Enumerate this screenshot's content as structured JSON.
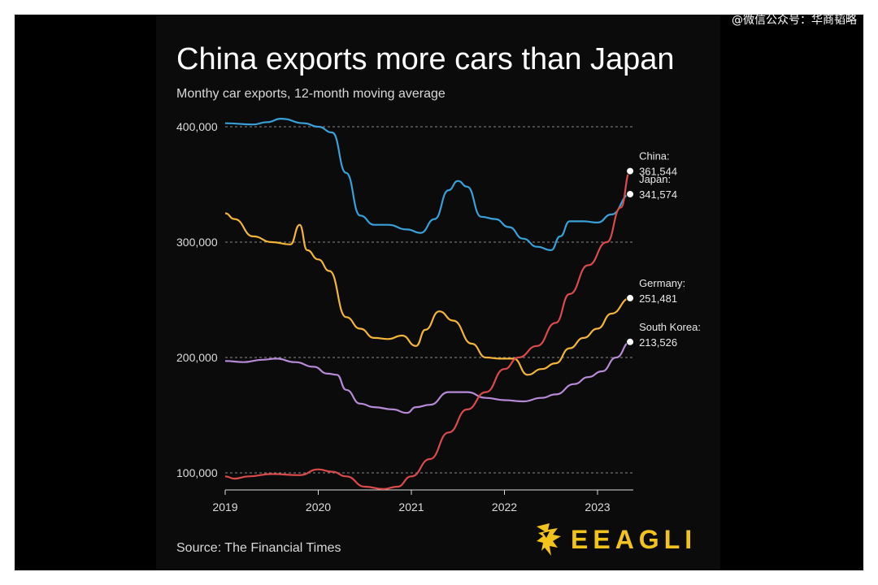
{
  "watermark": "@微信公众号：华商韬略",
  "header": {
    "title": "China exports more cars than Japan",
    "subtitle": "Monthy car exports, 12-month moving average"
  },
  "footer": {
    "source": "Source: The Financial Times",
    "brand": "EEAGLI"
  },
  "chart_data": {
    "type": "line",
    "title": "China exports more cars than Japan",
    "subtitle": "Monthy car exports, 12-month moving average",
    "xlim": [
      2019,
      2023.4
    ],
    "ylim": [
      85000,
      405000
    ],
    "x_ticks": [
      2019,
      2020,
      2021,
      2022,
      2023
    ],
    "x_tick_labels": [
      "2019",
      "2020",
      "2021",
      "2022",
      "2023"
    ],
    "y_ticks": [
      100000,
      200000,
      300000,
      400000
    ],
    "y_tick_labels": [
      "100,000",
      "200,000",
      "300,000",
      "400,000"
    ],
    "grid": "horizontal-dotted",
    "legend": "end-of-line labels",
    "series": [
      {
        "name": "Japan:",
        "end_value": "341,574",
        "color": "#3aa0d8",
        "points": [
          [
            2019,
            403000
          ],
          [
            2019.3,
            402000
          ],
          [
            2019.45,
            404000
          ],
          [
            2019.6,
            407000
          ],
          [
            2019.85,
            403000
          ],
          [
            2020.0,
            400000
          ],
          [
            2020.15,
            395000
          ],
          [
            2020.3,
            360000
          ],
          [
            2020.45,
            323000
          ],
          [
            2020.6,
            315000
          ],
          [
            2020.75,
            315000
          ],
          [
            2020.95,
            311000
          ],
          [
            2021.1,
            308000
          ],
          [
            2021.25,
            320000
          ],
          [
            2021.4,
            345000
          ],
          [
            2021.5,
            353000
          ],
          [
            2021.6,
            348000
          ],
          [
            2021.75,
            322000
          ],
          [
            2021.9,
            320000
          ],
          [
            2022.05,
            313000
          ],
          [
            2022.2,
            303000
          ],
          [
            2022.35,
            296000
          ],
          [
            2022.5,
            293000
          ],
          [
            2022.6,
            305000
          ],
          [
            2022.7,
            318000
          ],
          [
            2022.85,
            318000
          ],
          [
            2023.0,
            317000
          ],
          [
            2023.15,
            324000
          ],
          [
            2023.35,
            341574
          ]
        ]
      },
      {
        "name": "Germany:",
        "end_value": "251,481",
        "color": "#f3b43a",
        "points": [
          [
            2019,
            325000
          ],
          [
            2019.1,
            320000
          ],
          [
            2019.3,
            305000
          ],
          [
            2019.5,
            300000
          ],
          [
            2019.7,
            298000
          ],
          [
            2019.8,
            315000
          ],
          [
            2019.88,
            293000
          ],
          [
            2020.0,
            285000
          ],
          [
            2020.12,
            275000
          ],
          [
            2020.3,
            235000
          ],
          [
            2020.45,
            225000
          ],
          [
            2020.6,
            217000
          ],
          [
            2020.75,
            216000
          ],
          [
            2020.9,
            219000
          ],
          [
            2021.05,
            210000
          ],
          [
            2021.15,
            224000
          ],
          [
            2021.3,
            240000
          ],
          [
            2021.45,
            232000
          ],
          [
            2021.65,
            212000
          ],
          [
            2021.8,
            200000
          ],
          [
            2021.95,
            199000
          ],
          [
            2022.1,
            199000
          ],
          [
            2022.25,
            185000
          ],
          [
            2022.4,
            190000
          ],
          [
            2022.55,
            195000
          ],
          [
            2022.7,
            208000
          ],
          [
            2022.85,
            217000
          ],
          [
            2023.0,
            225000
          ],
          [
            2023.15,
            238000
          ],
          [
            2023.35,
            251481
          ]
        ]
      },
      {
        "name": "South Korea:",
        "end_value": "213,526",
        "color": "#b68ad6",
        "points": [
          [
            2019,
            197000
          ],
          [
            2019.2,
            196000
          ],
          [
            2019.4,
            198000
          ],
          [
            2019.55,
            199000
          ],
          [
            2019.75,
            196000
          ],
          [
            2019.95,
            192000
          ],
          [
            2020.1,
            186000
          ],
          [
            2020.2,
            185000
          ],
          [
            2020.3,
            172000
          ],
          [
            2020.45,
            160000
          ],
          [
            2020.6,
            157000
          ],
          [
            2020.8,
            155000
          ],
          [
            2020.95,
            152000
          ],
          [
            2021.05,
            157000
          ],
          [
            2021.2,
            159000
          ],
          [
            2021.4,
            170000
          ],
          [
            2021.6,
            170000
          ],
          [
            2021.8,
            165000
          ],
          [
            2022.0,
            163000
          ],
          [
            2022.2,
            162000
          ],
          [
            2022.4,
            165000
          ],
          [
            2022.55,
            168000
          ],
          [
            2022.75,
            177000
          ],
          [
            2022.9,
            183000
          ],
          [
            2023.05,
            188000
          ],
          [
            2023.2,
            200000
          ],
          [
            2023.35,
            213526
          ]
        ]
      },
      {
        "name": "China:",
        "end_value": "361,544",
        "color": "#dc4b4b",
        "points": [
          [
            2019,
            97000
          ],
          [
            2019.1,
            95000
          ],
          [
            2019.25,
            97000
          ],
          [
            2019.5,
            99000
          ],
          [
            2019.8,
            98000
          ],
          [
            2020.0,
            103000
          ],
          [
            2020.15,
            101000
          ],
          [
            2020.3,
            97000
          ],
          [
            2020.5,
            88000
          ],
          [
            2020.7,
            86000
          ],
          [
            2020.85,
            88000
          ],
          [
            2021.0,
            97000
          ],
          [
            2021.2,
            112000
          ],
          [
            2021.4,
            135000
          ],
          [
            2021.6,
            155000
          ],
          [
            2021.8,
            170000
          ],
          [
            2022.0,
            190000
          ],
          [
            2022.15,
            200000
          ],
          [
            2022.35,
            210000
          ],
          [
            2022.55,
            230000
          ],
          [
            2022.7,
            255000
          ],
          [
            2022.9,
            280000
          ],
          [
            2023.1,
            300000
          ],
          [
            2023.25,
            330000
          ],
          [
            2023.35,
            361544
          ]
        ]
      }
    ]
  }
}
